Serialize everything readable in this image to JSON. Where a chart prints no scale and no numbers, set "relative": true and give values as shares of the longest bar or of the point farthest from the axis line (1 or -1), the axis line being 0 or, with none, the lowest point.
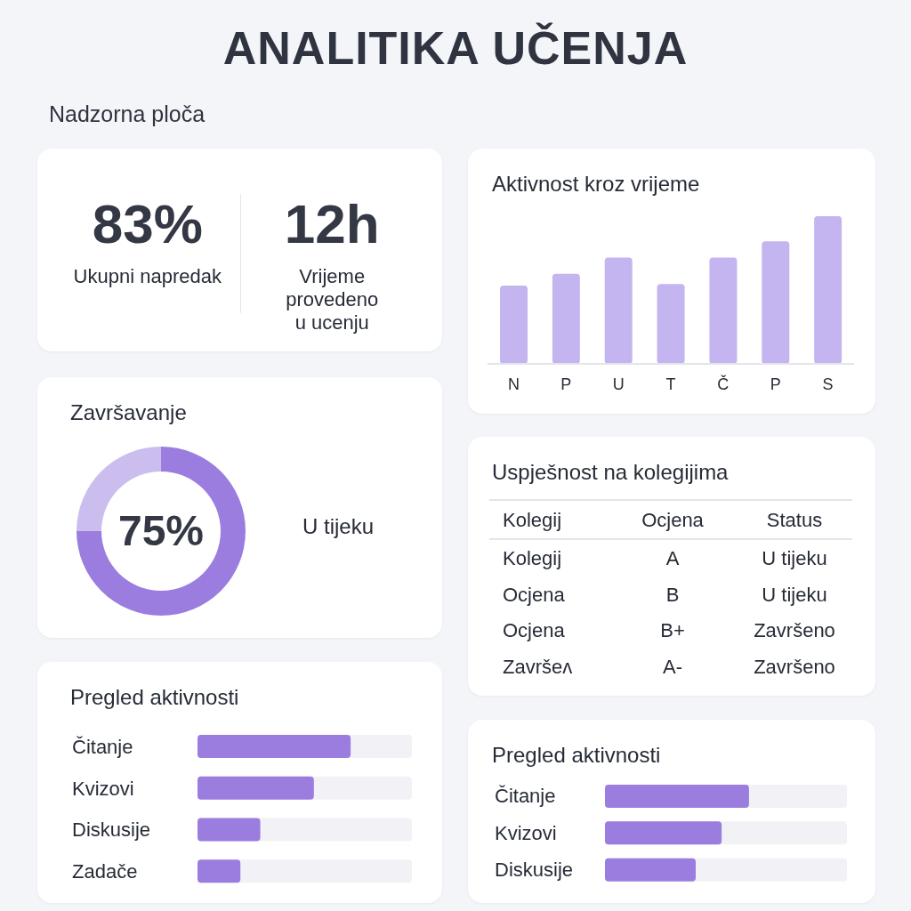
{
  "chart_data": [
    {
      "type": "other",
      "title": "ANALITIKA UČENJA",
      "subtitle": "Nadzorna ploča"
    },
    {
      "type": "other",
      "annotations": [
        "83%",
        "Ukupni napredak",
        "12h",
        "Vrijeme provedeno u ucenju"
      ]
    },
    {
      "type": "bar",
      "title": "Aktivnost kroz vrijeme",
      "categories": [
        "N",
        "P",
        "U",
        "T",
        "Č",
        "P",
        "S"
      ],
      "values": [
        0.53,
        0.61,
        0.72,
        0.54,
        0.72,
        0.83,
        1
      ],
      "color": "#c4b5f0",
      "relative": true
    },
    {
      "type": "donut",
      "title": "Završavanje",
      "categories": [
        null,
        null
      ],
      "values": [
        75,
        25
      ],
      "colors": [
        "#9a7ddf",
        "#cbbdee"
      ],
      "annotations": [
        "75%",
        "U tijeku"
      ]
    },
    {
      "type": "other",
      "title": "Uspješnost na kolegijima",
      "annotations": [
        "Kolegij",
        "Ocjena",
        "Status",
        "Kolegij",
        "A",
        "U tijeku",
        "Ocjena",
        "B",
        "U tijeku",
        "Ocjena",
        "B+",
        "Završeno",
        "Završeʌ",
        "A-",
        "Završeno"
      ]
    },
    {
      "type": "bar",
      "orientation": "horizontal",
      "title": "Pregled aktivnosti",
      "categories": [
        "Čitanje",
        "Kvizovi",
        "Diskusije",
        "Zadače"
      ],
      "values": [
        1,
        0.76,
        0.41,
        0.28
      ],
      "color": "#9a7ddf",
      "relative": true
    },
    {
      "type": "bar",
      "orientation": "horizontal",
      "title": "Pregled aktivnosti",
      "categories": [
        "Čitanje",
        "Kvizovi",
        "Diskusije"
      ],
      "values": [
        1,
        0.81,
        0.63
      ],
      "color": "#9a7ddf",
      "relative": true
    }
  ]
}
